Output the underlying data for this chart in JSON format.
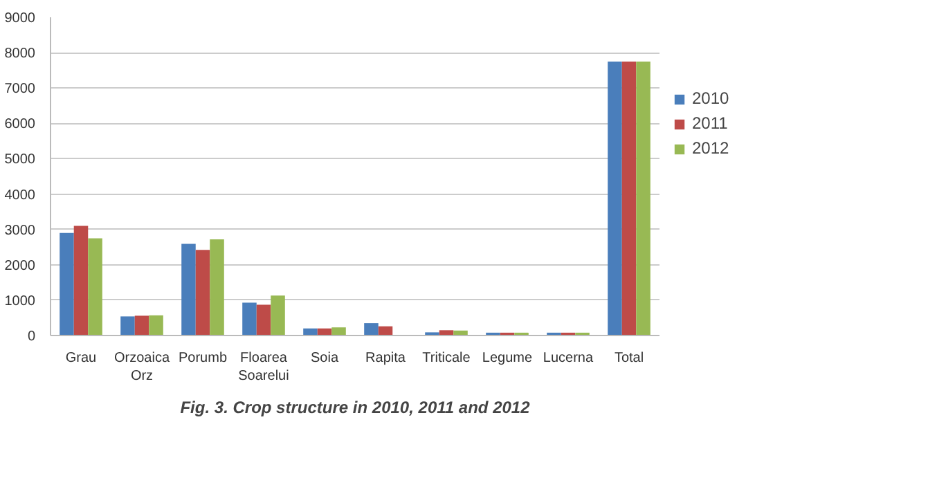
{
  "chart_data": {
    "type": "bar",
    "title": "Fig. 3. Crop structure in 2010, 2011 and 2012",
    "categories": [
      "Grau",
      "Orzoaica Orz",
      "Porumb",
      "Floarea Soarelui",
      "Soia",
      "Rapita",
      "Triticale",
      "Legume",
      "Lucerna",
      "Total"
    ],
    "series": [
      {
        "name": "2010",
        "color": "#4a7ebb",
        "values": [
          2900,
          540,
          2590,
          930,
          200,
          350,
          90,
          80,
          80,
          7750
        ]
      },
      {
        "name": "2011",
        "color": "#be4b48",
        "values": [
          3100,
          560,
          2420,
          870,
          200,
          260,
          150,
          80,
          80,
          7750
        ]
      },
      {
        "name": "2012",
        "color": "#98b954",
        "values": [
          2750,
          570,
          2720,
          1130,
          230,
          null,
          140,
          80,
          80,
          7750
        ]
      }
    ],
    "ylim": [
      0,
      9000
    ],
    "yticks": [
      0,
      1000,
      2000,
      3000,
      4000,
      5000,
      6000,
      7000,
      8000,
      9000
    ],
    "grid": "y",
    "legend": "right"
  }
}
